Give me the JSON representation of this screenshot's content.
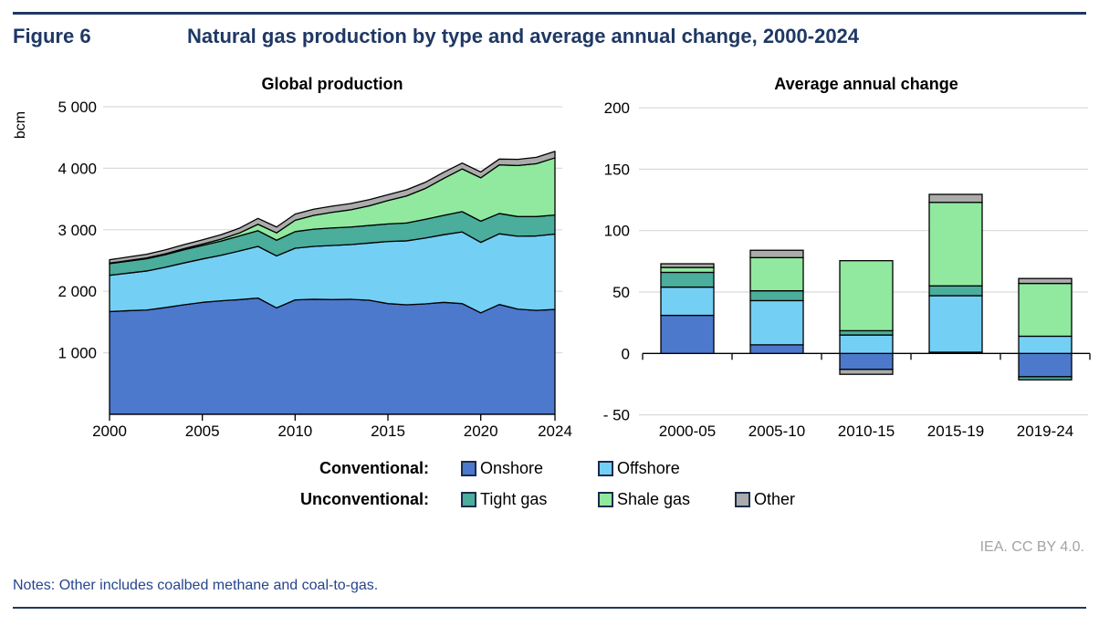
{
  "figure": {
    "label": "Figure 6",
    "title": "Natural gas production by type and average annual change, 2000-2024"
  },
  "colors": {
    "onshore": "#4C79CC",
    "offshore": "#74CFF5",
    "tight_gas": "#4BAD9B",
    "shale_gas": "#90E99F",
    "other": "#ABABAB",
    "navy": "#1F3864",
    "gridline": "#DADADA",
    "axis": "#000000"
  },
  "legend": {
    "rows": [
      {
        "label": "Conventional:",
        "items": [
          {
            "name": "Onshore",
            "color_key": "onshore"
          },
          {
            "name": "Offshore",
            "color_key": "offshore"
          }
        ]
      },
      {
        "label": "Unconventional:",
        "items": [
          {
            "name": "Tight gas",
            "color_key": "tight_gas"
          },
          {
            "name": "Shale gas",
            "color_key": "shale_gas"
          },
          {
            "name": "Other",
            "color_key": "other"
          }
        ]
      }
    ]
  },
  "credit": "IEA. CC BY 4.0.",
  "notes": "Notes: Other includes coalbed methane and coal-to-gas.",
  "chart_data": [
    {
      "type": "area",
      "title": "Global production",
      "ylabel": "bcm",
      "x": [
        2000,
        2001,
        2002,
        2003,
        2004,
        2005,
        2006,
        2007,
        2008,
        2009,
        2010,
        2011,
        2012,
        2013,
        2014,
        2015,
        2016,
        2017,
        2018,
        2019,
        2020,
        2021,
        2022,
        2023,
        2024
      ],
      "xtick_values": [
        2000,
        2005,
        2010,
        2015,
        2020,
        2024
      ],
      "xtick_labels": [
        "2000",
        "2005",
        "2010",
        "2015",
        "2020",
        "2024"
      ],
      "ylim": [
        0,
        5000
      ],
      "ytick_values": [
        1000,
        2000,
        3000,
        4000,
        5000
      ],
      "ytick_labels": [
        "1 000",
        "2 000",
        "3 000",
        "4 000",
        "5 000"
      ],
      "grid": true,
      "legend_position": "below",
      "series": [
        {
          "name": "Onshore",
          "color_key": "onshore",
          "values": [
            1670,
            1685,
            1695,
            1735,
            1780,
            1820,
            1845,
            1865,
            1890,
            1730,
            1860,
            1870,
            1865,
            1870,
            1855,
            1800,
            1780,
            1795,
            1820,
            1800,
            1650,
            1785,
            1710,
            1690,
            1705
          ]
        },
        {
          "name": "Offshore",
          "color_key": "offshore",
          "values": [
            590,
            610,
            635,
            655,
            680,
            705,
            740,
            790,
            840,
            845,
            840,
            860,
            880,
            890,
            930,
            1010,
            1040,
            1070,
            1100,
            1165,
            1145,
            1150,
            1185,
            1210,
            1225
          ]
        },
        {
          "name": "Tight gas",
          "color_key": "tight_gas",
          "values": [
            190,
            195,
            200,
            205,
            215,
            220,
            230,
            245,
            255,
            255,
            270,
            280,
            285,
            285,
            285,
            285,
            290,
            305,
            315,
            330,
            345,
            330,
            320,
            315,
            310
          ]
        },
        {
          "name": "Shale gas",
          "color_key": "shale_gas",
          "values": [
            8,
            10,
            12,
            15,
            18,
            22,
            32,
            48,
            105,
            120,
            185,
            225,
            255,
            280,
            320,
            380,
            440,
            500,
            600,
            695,
            705,
            790,
            830,
            860,
            930
          ]
        },
        {
          "name": "Other",
          "color_key": "other",
          "values": [
            55,
            57,
            60,
            62,
            65,
            68,
            72,
            78,
            95,
            95,
            100,
            100,
            100,
            102,
            100,
            95,
            100,
            100,
            100,
            95,
            95,
            95,
            100,
            103,
            105
          ]
        }
      ]
    },
    {
      "type": "bar",
      "stacked": true,
      "title": "Average annual change",
      "categories": [
        "2000-05",
        "2005-10",
        "2010-15",
        "2015-19",
        "2019-24"
      ],
      "ylim": [
        -50,
        200
      ],
      "ytick_values": [
        200,
        150,
        100,
        50,
        0,
        -50
      ],
      "ytick_labels": [
        "200",
        "150",
        "100",
        "50",
        "0",
        "- 50"
      ],
      "grid": true,
      "series": [
        {
          "name": "Onshore",
          "color_key": "onshore",
          "values": [
            31,
            7,
            -13,
            1,
            -19
          ]
        },
        {
          "name": "Offshore",
          "color_key": "offshore",
          "values": [
            23,
            36,
            15,
            46,
            14
          ]
        },
        {
          "name": "Tight gas",
          "color_key": "tight_gas",
          "values": [
            12,
            8,
            3.5,
            8,
            -2.5
          ]
        },
        {
          "name": "Shale gas",
          "color_key": "shale_gas",
          "values": [
            4,
            27,
            57,
            68,
            43
          ]
        },
        {
          "name": "Other",
          "color_key": "other",
          "values": [
            3,
            6,
            -4,
            6.5,
            4
          ]
        }
      ]
    }
  ]
}
